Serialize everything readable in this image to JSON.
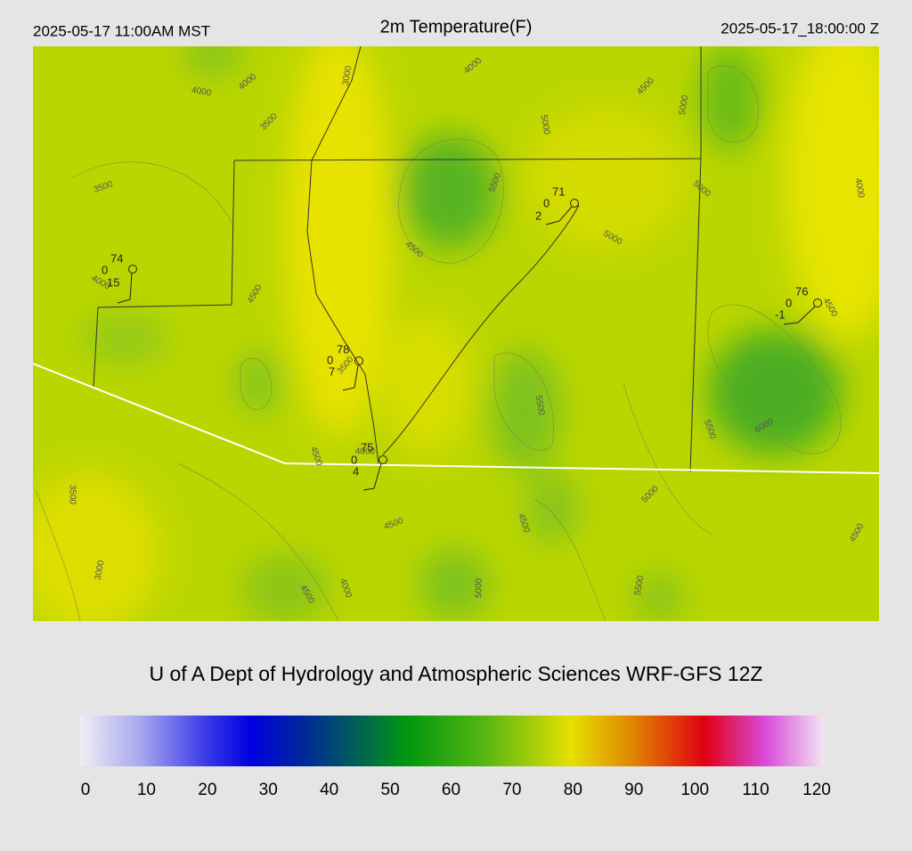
{
  "header": {
    "left": "2025-05-17 11:00AM MST",
    "title": "2m Temperature(F)",
    "right": "2025-05-17_18:00:00 Z"
  },
  "map": {
    "contour_labels": [
      4000,
      4000,
      3500,
      3000,
      4000,
      4500,
      5000,
      5000,
      5500,
      5000,
      4000,
      3500,
      4500,
      5000,
      4000,
      4500,
      4500,
      3500,
      5500,
      5500,
      6000,
      4500,
      4000,
      3500,
      5000,
      4500,
      4500,
      4500,
      3000,
      4000,
      5000,
      4500,
      5500
    ],
    "stations": [
      {
        "temp": 74,
        "left": 0,
        "bottom": 15
      },
      {
        "temp": 71,
        "left": 0,
        "bottom": 2
      },
      {
        "temp": 76,
        "left": 0,
        "bottom": -1
      },
      {
        "temp": 78,
        "left": 0,
        "bottom": 7
      },
      {
        "temp": 75,
        "left": 0,
        "bottom": 4
      }
    ]
  },
  "footer": {
    "credit": "U of A Dept of Hydrology and Atmospheric Sciences WRF-GFS 12Z"
  },
  "colorbar": {
    "lim": [
      0,
      120
    ],
    "ticks": [
      0,
      10,
      20,
      30,
      40,
      50,
      60,
      70,
      80,
      90,
      100,
      110,
      120
    ]
  }
}
